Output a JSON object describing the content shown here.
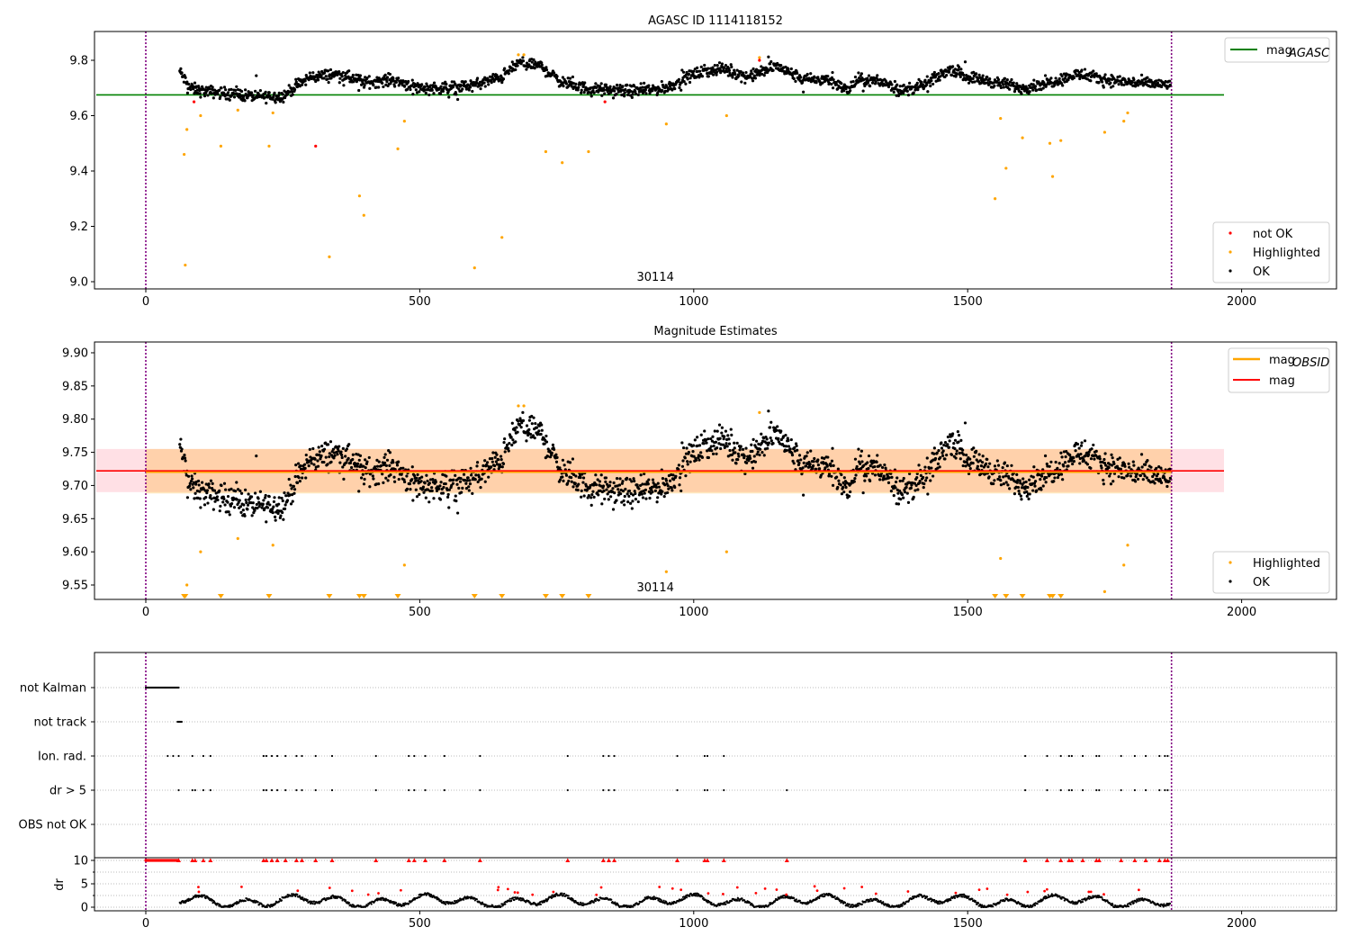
{
  "chart_data": [
    {
      "type": "scatter",
      "title": "AGASC ID 1114118152",
      "xlim": [
        -94,
        2173
      ],
      "ylim": [
        8.974,
        9.904
      ],
      "xticks": [
        0,
        500,
        1000,
        1500,
        2000
      ],
      "yticks": [
        "9.0",
        "9.2",
        "9.4",
        "9.6",
        "9.8"
      ],
      "annotation": "30114",
      "obs_start": 0,
      "obs_end": 1872,
      "mag_agasc": 9.675,
      "legend_line": "mag",
      "legend_line_sub": "AGASC",
      "legend": [
        "not OK",
        "Highlighted",
        "OK"
      ],
      "trend": [
        [
          62,
          9.76
        ],
        [
          80,
          9.7
        ],
        [
          100,
          9.69
        ],
        [
          150,
          9.68
        ],
        [
          200,
          9.67
        ],
        [
          250,
          9.67
        ],
        [
          270,
          9.7
        ],
        [
          300,
          9.74
        ],
        [
          350,
          9.75
        ],
        [
          400,
          9.72
        ],
        [
          450,
          9.73
        ],
        [
          500,
          9.7
        ],
        [
          550,
          9.7
        ],
        [
          600,
          9.71
        ],
        [
          650,
          9.74
        ],
        [
          680,
          9.79
        ],
        [
          720,
          9.78
        ],
        [
          760,
          9.72
        ],
        [
          800,
          9.7
        ],
        [
          850,
          9.69
        ],
        [
          900,
          9.69
        ],
        [
          950,
          9.7
        ],
        [
          1000,
          9.75
        ],
        [
          1050,
          9.77
        ],
        [
          1100,
          9.74
        ],
        [
          1150,
          9.78
        ],
        [
          1200,
          9.73
        ],
        [
          1250,
          9.73
        ],
        [
          1280,
          9.69
        ],
        [
          1300,
          9.73
        ],
        [
          1350,
          9.72
        ],
        [
          1380,
          9.69
        ],
        [
          1420,
          9.71
        ],
        [
          1470,
          9.77
        ],
        [
          1500,
          9.74
        ],
        [
          1550,
          9.72
        ],
        [
          1600,
          9.7
        ],
        [
          1650,
          9.72
        ],
        [
          1700,
          9.75
        ],
        [
          1750,
          9.73
        ],
        [
          1800,
          9.72
        ],
        [
          1872,
          9.71
        ]
      ],
      "highlighted": [
        [
          70,
          9.46
        ],
        [
          72,
          9.06
        ],
        [
          75,
          9.55
        ],
        [
          100,
          9.6
        ],
        [
          137,
          9.49
        ],
        [
          168,
          9.62
        ],
        [
          225,
          9.49
        ],
        [
          232,
          9.61
        ],
        [
          335,
          9.09
        ],
        [
          390,
          9.31
        ],
        [
          398,
          9.24
        ],
        [
          460,
          9.48
        ],
        [
          472,
          9.58
        ],
        [
          600,
          9.05
        ],
        [
          650,
          9.16
        ],
        [
          680,
          9.82
        ],
        [
          690,
          9.82
        ],
        [
          730,
          9.47
        ],
        [
          760,
          9.43
        ],
        [
          808,
          9.47
        ],
        [
          950,
          9.57
        ],
        [
          1060,
          9.6
        ],
        [
          1120,
          9.81
        ],
        [
          1550,
          9.3
        ],
        [
          1560,
          9.59
        ],
        [
          1570,
          9.41
        ],
        [
          1600,
          9.52
        ],
        [
          1650,
          9.5
        ],
        [
          1655,
          9.38
        ],
        [
          1670,
          9.51
        ],
        [
          1750,
          9.54
        ],
        [
          1785,
          9.58
        ],
        [
          1792,
          9.61
        ]
      ],
      "not_ok": [
        [
          88,
          9.65
        ],
        [
          310,
          9.49
        ],
        [
          838,
          9.65
        ],
        [
          1120,
          9.8
        ]
      ]
    },
    {
      "type": "scatter",
      "title": "Magnitude Estimates",
      "ylim": [
        9.528,
        9.916
      ],
      "yticks": [
        "9.55",
        "9.60",
        "9.65",
        "9.70",
        "9.75",
        "9.80",
        "9.85",
        "9.90"
      ],
      "annotation": "30114",
      "mag": 9.722,
      "mag_band": [
        9.69,
        9.755
      ],
      "mag_obsid": 9.72,
      "mag_obsid_band": [
        9.688,
        9.755
      ],
      "legend_lines": [
        "mag",
        "mag"
      ],
      "legend_obsid_sub": "OBSID",
      "legend": [
        "Highlighted",
        "OK"
      ]
    },
    {
      "type": "scatter",
      "categories": [
        "not Kalman",
        "not track",
        "Ion. rad.",
        "dr > 5",
        "OBS not OK"
      ],
      "not_kalman": [
        0,
        60
      ],
      "not_track": [
        58,
        66
      ],
      "ion_rad": [
        40,
        50,
        60,
        85,
        105,
        118,
        215,
        220,
        230,
        240,
        255,
        275,
        285,
        310,
        340,
        420,
        480,
        490,
        510,
        545,
        610,
        770,
        835,
        845,
        855,
        970,
        1020,
        1025,
        1055,
        1605,
        1645,
        1670,
        1685,
        1690,
        1710,
        1735,
        1740,
        1780,
        1805,
        1825,
        1850,
        1860,
        1865
      ],
      "dr_gt5": [
        60,
        85,
        90,
        105,
        118,
        215,
        220,
        230,
        240,
        255,
        275,
        285,
        310,
        340,
        420,
        480,
        490,
        510,
        545,
        610,
        770,
        835,
        845,
        855,
        970,
        1020,
        1025,
        1055,
        1170,
        1605,
        1645,
        1670,
        1685,
        1690,
        1710,
        1735,
        1740,
        1780,
        1805,
        1825,
        1850,
        1860,
        1865
      ],
      "dr_ylabel": "dr",
      "dr_yticks": [
        "0",
        "5",
        "10"
      ],
      "dr_ylim": [
        -0.6,
        10.4
      ]
    }
  ]
}
